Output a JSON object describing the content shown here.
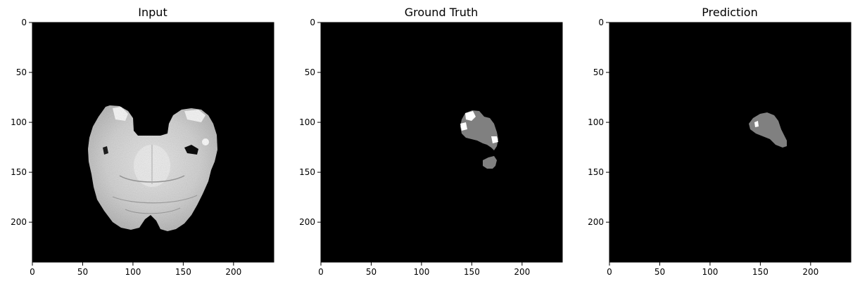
{
  "panels": [
    {
      "title": "Input"
    },
    {
      "title": "Ground Truth"
    },
    {
      "title": "Prediction"
    }
  ],
  "axes": {
    "x_ticks": [
      "0",
      "50",
      "100",
      "150",
      "200"
    ],
    "y_ticks": [
      "0",
      "50",
      "100",
      "150",
      "200"
    ],
    "extent": [
      0,
      240
    ]
  },
  "colors": {
    "background": "#000000",
    "label_gray": "#808080",
    "label_white": "#ffffff"
  }
}
